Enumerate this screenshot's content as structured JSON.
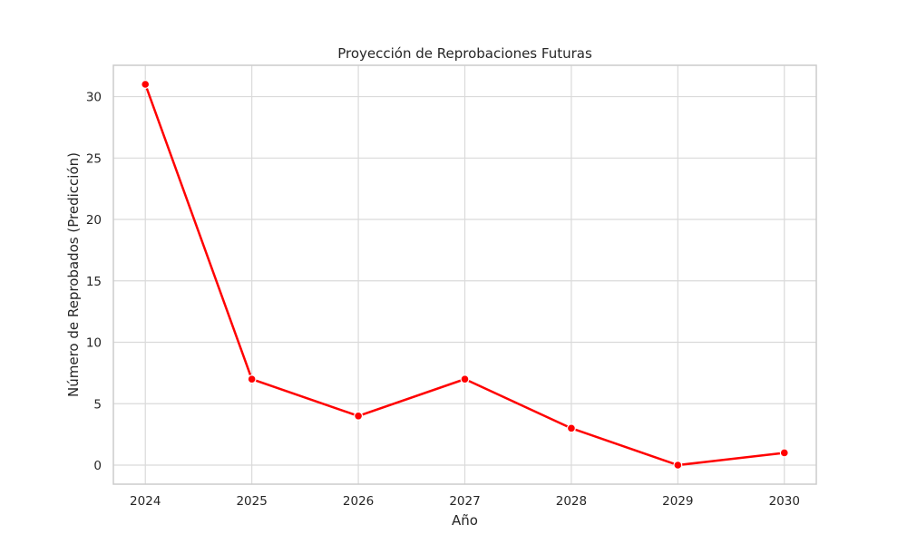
{
  "chart_data": {
    "type": "line",
    "title": "Proyección de Reprobaciones Futuras",
    "xlabel": "Año",
    "ylabel": "Número de Reprobados (Predicción)",
    "x": [
      2024,
      2025,
      2026,
      2027,
      2028,
      2029,
      2030
    ],
    "x_tick_labels": [
      "2024",
      "2025",
      "2026",
      "2027",
      "2028",
      "2029",
      "2030"
    ],
    "series": [
      {
        "values": [
          31,
          7,
          4,
          7,
          3,
          0,
          1
        ],
        "color": "#ff0000",
        "marker": "circle"
      }
    ],
    "y_ticks": [
      0,
      5,
      10,
      15,
      20,
      25,
      30
    ],
    "y_tick_labels": [
      "0",
      "5",
      "10",
      "15",
      "20",
      "25",
      "30"
    ],
    "xlim": [
      2023.7,
      2030.3
    ],
    "ylim": [
      -1.55,
      32.55
    ],
    "grid": true,
    "legend": false
  }
}
